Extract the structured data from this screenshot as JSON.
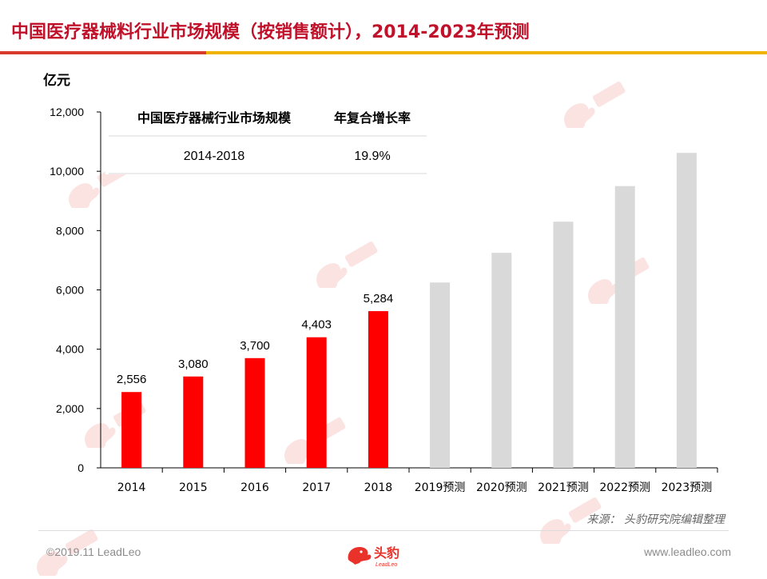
{
  "page": {
    "title": "中国医疗器械料行业市场规模（按销售额计），2014-2023年预测",
    "source": "来源：  头豹研究院编辑整理",
    "copyright": "©2019.11 LeadLeo",
    "website": "www.leadleo.com",
    "logo_text": "头豹",
    "logo_subtext": "LeadLeo",
    "colors": {
      "accent_red": "#d83b2b",
      "accent_yellow": "#f0b400",
      "title_red": "#c0102a"
    }
  },
  "chart_data": {
    "type": "bar",
    "title": "中国医疗器械料行业市场规模（按销售额计），2014-2023年预测",
    "unit_label": "亿元",
    "categories": [
      "2014",
      "2015",
      "2016",
      "2017",
      "2018",
      "2019预测",
      "2020预测",
      "2021预测",
      "2022预测",
      "2023预测"
    ],
    "values": [
      2556,
      3080,
      3700,
      4403,
      5284,
      6250,
      7250,
      8300,
      9500,
      10620
    ],
    "data_labels": [
      "2,556",
      "3,080",
      "3,700",
      "4,403",
      "5,284",
      "",
      "",
      "",
      "",
      ""
    ],
    "bar_colors": [
      "#ff0000",
      "#ff0000",
      "#ff0000",
      "#ff0000",
      "#ff0000",
      "#d9d9d9",
      "#d9d9d9",
      "#d9d9d9",
      "#d9d9d9",
      "#d9d9d9"
    ],
    "ylim": [
      0,
      12000
    ],
    "yticks": [
      0,
      2000,
      4000,
      6000,
      8000,
      10000,
      12000
    ],
    "ytick_labels": [
      "0",
      "2,000",
      "4,000",
      "6,000",
      "8,000",
      "10,000",
      "12,000"
    ],
    "grid": false,
    "inset_table": {
      "headers": [
        "中国医疗器械行业市场规模",
        "年复合增长率"
      ],
      "rows": [
        [
          "2014-2018",
          "19.9%"
        ]
      ]
    }
  }
}
